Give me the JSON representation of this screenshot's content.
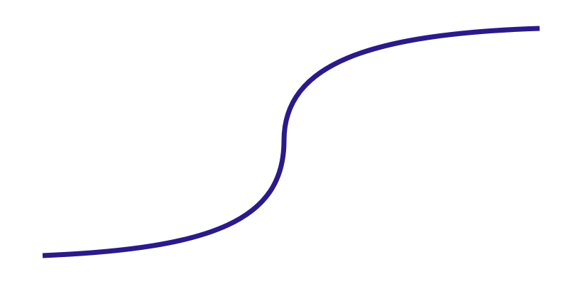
{
  "curve": {
    "shape": "s-curve",
    "color": "#2a1a8a"
  }
}
